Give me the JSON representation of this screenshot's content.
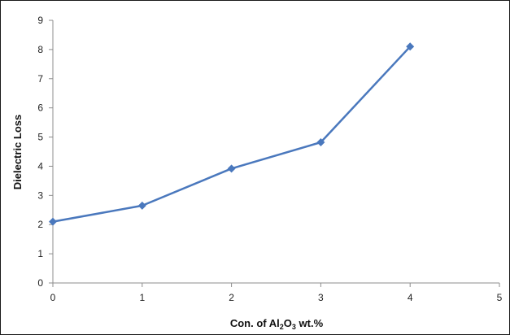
{
  "chart_data": {
    "type": "line",
    "x": [
      0,
      1,
      2,
      3,
      4
    ],
    "series": [
      {
        "values": [
          2.1,
          2.65,
          3.92,
          4.82,
          8.1
        ]
      }
    ],
    "xlabel": {
      "prefix": "Con. of  Al",
      "sub1": "2",
      "mid": "O",
      "sub2": "3",
      "suffix": "  wt.%"
    },
    "ylabel": "Dielectric Loss",
    "xlim": [
      0,
      5
    ],
    "ylim": [
      0,
      9
    ],
    "xticks": [
      0,
      1,
      2,
      3,
      4,
      5
    ],
    "yticks": [
      0,
      1,
      2,
      3,
      4,
      5,
      6,
      7,
      8,
      9
    ],
    "grid": false,
    "line_color": "#4a78bd"
  }
}
